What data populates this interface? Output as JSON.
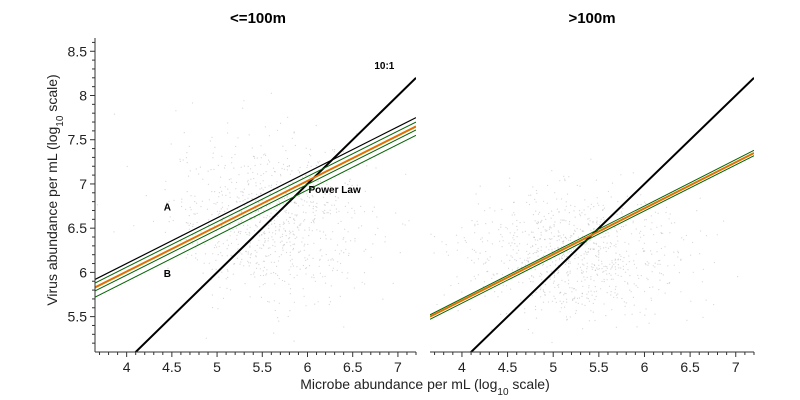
{
  "chart_data": [
    {
      "type": "scatter",
      "title": "<=100m",
      "xlabel": "Microbe abundance per mL (log10 scale)",
      "ylabel": "Virus abundance per mL (log10 scale)",
      "xlim": [
        3.65,
        7.2
      ],
      "ylim": [
        5.1,
        8.65
      ],
      "xticks": [
        "4",
        "4.5",
        "5",
        "5.5",
        "6",
        "6.5",
        "7"
      ],
      "yticks": [
        "5.5",
        "6",
        "6.5",
        "7",
        "7.5",
        "8",
        "8.5"
      ],
      "grid": false,
      "scatter_cloud": {
        "center": [
          5.6,
          6.6
        ],
        "spread": [
          0.55,
          0.45
        ],
        "count": 900,
        "color": "#b4b4b4"
      },
      "series": [
        {
          "type": "line",
          "color": "#000000",
          "width": 2,
          "x": [
            4.05,
            7.2
          ],
          "y": [
            5.05,
            8.2
          ]
        },
        {
          "type": "line",
          "color": "#000000",
          "width": 1.2,
          "x": [
            3.65,
            7.2
          ],
          "y": [
            5.92,
            7.75
          ]
        },
        {
          "type": "line",
          "color": "#006400",
          "width": 1,
          "x": [
            3.65,
            7.2
          ],
          "y": [
            5.88,
            7.7
          ]
        },
        {
          "type": "line",
          "color": "#e07000",
          "width": 2,
          "x": [
            3.65,
            7.2
          ],
          "y": [
            5.83,
            7.65
          ]
        },
        {
          "type": "line",
          "color": "#006400",
          "width": 1,
          "x": [
            3.65,
            7.2
          ],
          "y": [
            5.79,
            7.61
          ]
        },
        {
          "type": "line",
          "color": "#006400",
          "width": 1,
          "x": [
            3.65,
            7.2
          ],
          "y": [
            5.72,
            7.55
          ]
        }
      ],
      "annotations": [
        {
          "text": "10:1",
          "x": 6.85,
          "y": 8.3
        },
        {
          "text": "Power Law",
          "x": 6.3,
          "y": 6.9
        },
        {
          "text": "A",
          "x": 4.45,
          "y": 6.7
        },
        {
          "text": "B",
          "x": 4.45,
          "y": 5.95
        }
      ]
    },
    {
      "type": "scatter",
      "title": ">100m",
      "xlim": [
        3.65,
        7.2
      ],
      "ylim": [
        5.1,
        8.65
      ],
      "xticks": [
        "4",
        "4.5",
        "5",
        "5.5",
        "6",
        "6.5",
        "7"
      ],
      "grid": false,
      "scatter_cloud": {
        "center": [
          5.2,
          6.2
        ],
        "spread": [
          0.6,
          0.35
        ],
        "count": 900,
        "color": "#b4b4b4"
      },
      "series": [
        {
          "type": "line",
          "color": "#000000",
          "width": 2,
          "x": [
            4.05,
            7.2
          ],
          "y": [
            5.05,
            8.2
          ]
        },
        {
          "type": "line",
          "color": "#006400",
          "width": 1,
          "x": [
            3.65,
            7.2
          ],
          "y": [
            5.52,
            7.38
          ]
        },
        {
          "type": "line",
          "color": "#e07000",
          "width": 2,
          "x": [
            3.65,
            7.2
          ],
          "y": [
            5.5,
            7.35
          ]
        },
        {
          "type": "line",
          "color": "#006400",
          "width": 1,
          "x": [
            3.65,
            7.2
          ],
          "y": [
            5.47,
            7.32
          ]
        }
      ],
      "annotations": []
    }
  ]
}
